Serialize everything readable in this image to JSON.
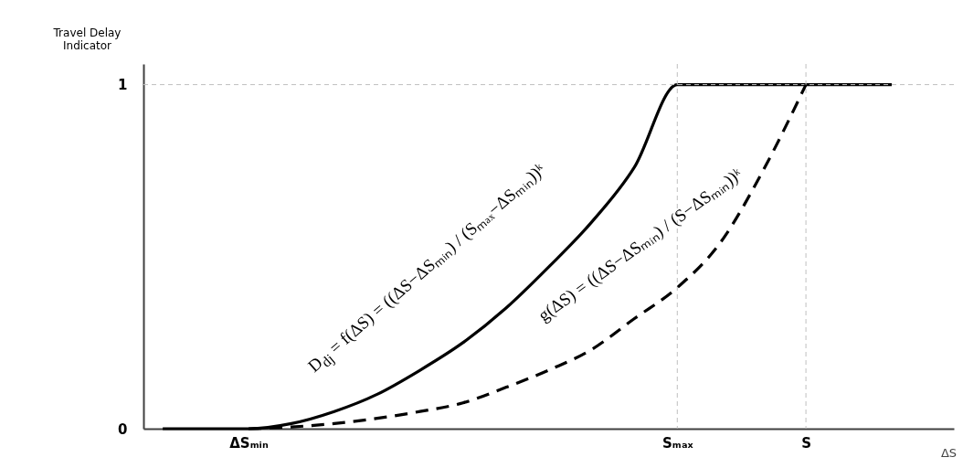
{
  "chart_data": {
    "type": "line",
    "ylabel": "Travel Delay Indicator",
    "xlabel": "ΔS",
    "categories": [
      null,
      null,
      "ΔSₘᵢₙ",
      null,
      null,
      null,
      null,
      null,
      null,
      null,
      null,
      null,
      "Sₘₐₓ",
      null,
      null,
      "S",
      null,
      null,
      null
    ],
    "series": [
      {
        "color": "#000000",
        "line_style": "solid",
        "values": [
          0,
          0,
          0,
          0.015,
          0.05,
          0.1,
          0.17,
          0.25,
          0.35,
          0.47,
          0.6,
          0.76,
          1,
          1,
          1,
          1,
          1,
          1,
          null
        ]
      },
      {
        "color": "#000000",
        "line_style": "dashed",
        "values": [
          null,
          null,
          0,
          0.005,
          0.015,
          0.03,
          0.05,
          0.075,
          0.12,
          0.17,
          0.23,
          0.32,
          0.41,
          0.54,
          0.75,
          1,
          null,
          null,
          null
        ]
      }
    ],
    "ylim": [
      0,
      1.06
    ],
    "yticks": [
      0,
      1
    ],
    "grid": false,
    "ref_lines": [
      {
        "axis": "y",
        "value": 1,
        "color": "#bfbfbf",
        "line_style": "dashed"
      },
      {
        "axis": "x",
        "value": "Sₘₐₓ",
        "color": "#bfbfbf",
        "line_style": "dashed"
      },
      {
        "axis": "x",
        "value": "S",
        "color": "#bfbfbf",
        "line_style": "dashed"
      }
    ],
    "annotations": [
      "D$_{dj}$ = f(ΔS) = ((ΔS−ΔSₘᵢₙ) / (Sₘₐₓ−ΔSₘᵢₙ))ᵏ",
      "g(ΔS) = ((ΔS−ΔSₘᵢₙ) / (S−ΔSₘᵢₙ))ᵏ"
    ]
  }
}
